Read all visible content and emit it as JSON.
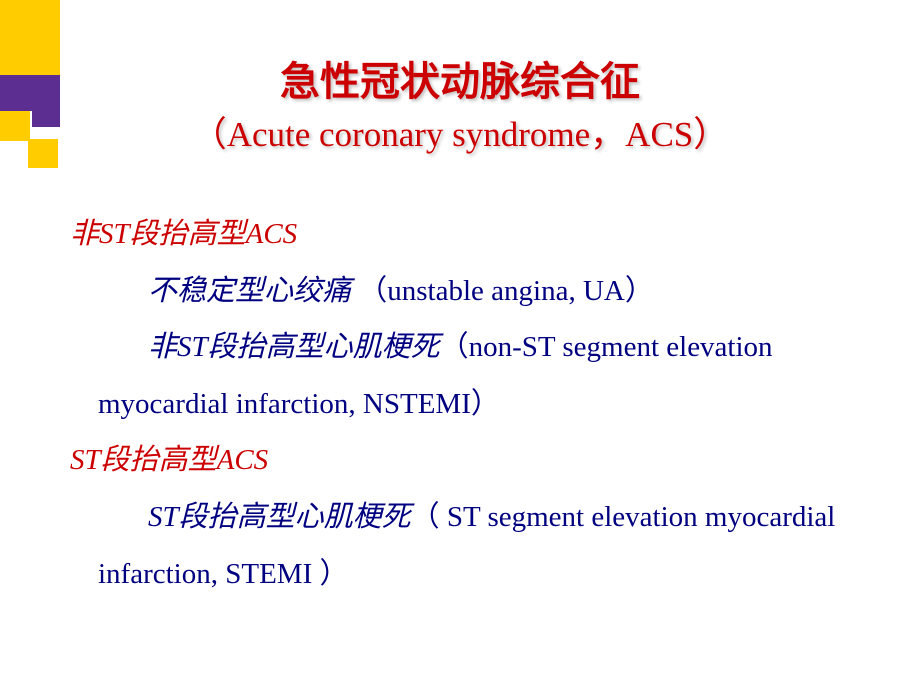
{
  "title": {
    "main": "急性冠状动脉综合征",
    "sub": "（Acute coronary syndrome，ACS）"
  },
  "sections": [
    {
      "heading": "非ST段抬高型ACS",
      "items": [
        {
          "cn": "不稳定型心绞痛 ",
          "en": "（unstable angina, UA）"
        },
        {
          "cn": "非ST段抬高型心肌梗死",
          "en": "（non-ST segment elevation myocardial infarction, NSTEMI）"
        }
      ]
    },
    {
      "heading": "ST段抬高型ACS",
      "items": [
        {
          "cn": "ST段抬高型心肌梗死",
          "en": "（ ST segment elevation myocardial infarction, STEMI ）"
        }
      ]
    }
  ],
  "colors": {
    "title": "#cc0000",
    "heading": "#cc0000",
    "body": "#000080",
    "background": "#ffffff",
    "deco_yellow": "#ffcc00",
    "deco_purple": "#5c2e91"
  }
}
